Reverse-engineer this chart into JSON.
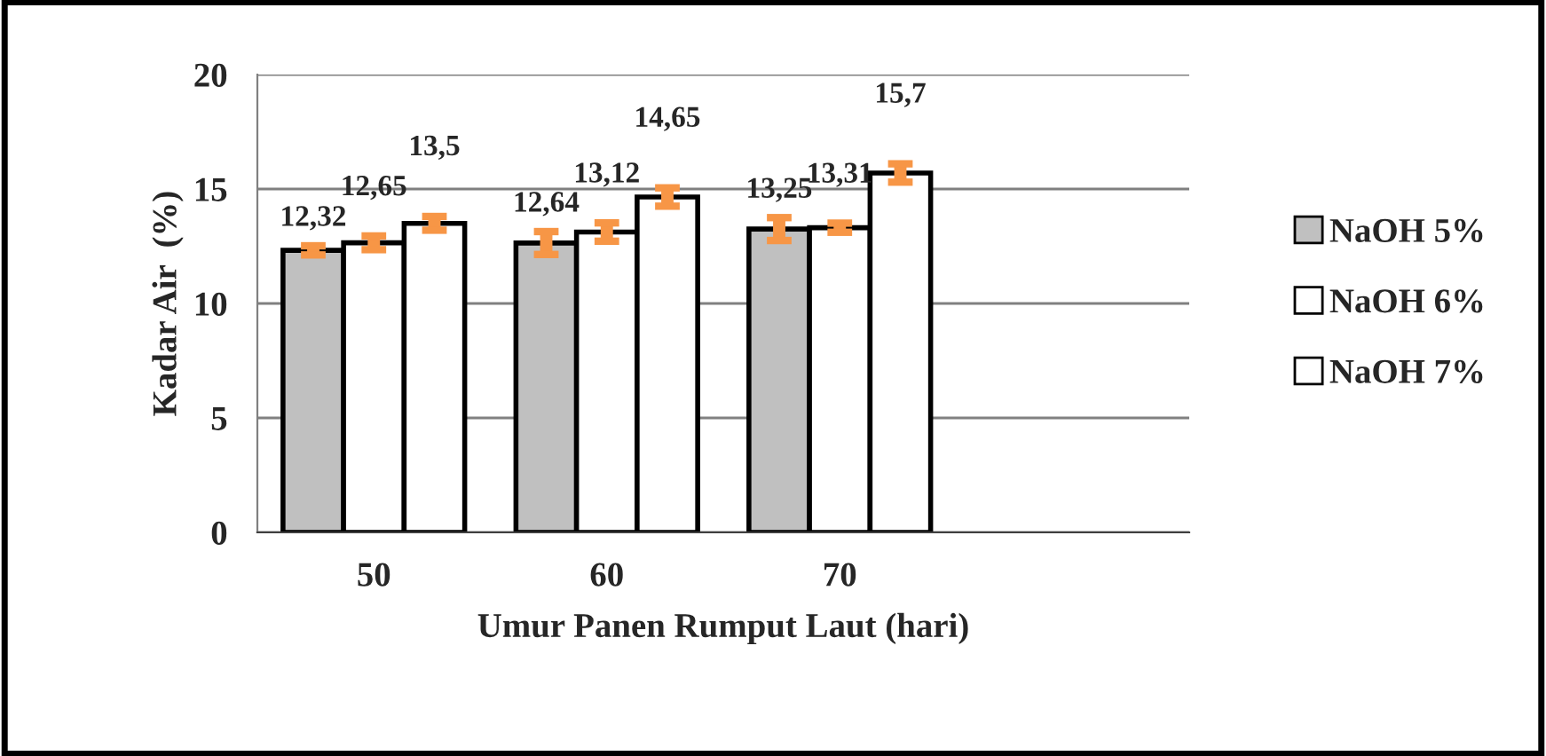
{
  "chart_data": {
    "type": "bar",
    "xlabel": "Umur Panen Rumput Laut (hari)",
    "ylabel": "Kadar Air  (%)",
    "categories": [
      "50",
      "60",
      "70",
      null
    ],
    "series": [
      {
        "name": "NaOH 5%",
        "color": "#c0c0c0",
        "values": [
          12.32,
          12.64,
          13.25,
          null
        ],
        "errors": [
          0.2,
          0.5,
          0.5,
          null
        ],
        "value_labels": [
          "12,32",
          "12,64",
          "13,25",
          null
        ]
      },
      {
        "name": "NaOH 6%",
        "color": "#ffffff",
        "values": [
          12.65,
          13.12,
          13.31,
          null
        ],
        "errors": [
          0.3,
          0.4,
          0.2,
          null
        ],
        "value_labels": [
          "12,65",
          "13,12",
          "13,31",
          null
        ]
      },
      {
        "name": "NaOH 7%",
        "color": "#ffffff",
        "values": [
          13.5,
          14.65,
          15.7,
          null
        ],
        "errors": [
          0.3,
          0.4,
          0.4,
          null
        ],
        "value_labels": [
          "13,5",
          "14,65",
          "15,7",
          null
        ]
      }
    ],
    "ylim": [
      0,
      20
    ],
    "yticks": [
      0,
      5,
      10,
      15,
      20
    ],
    "grid": "y",
    "legend": "right"
  }
}
